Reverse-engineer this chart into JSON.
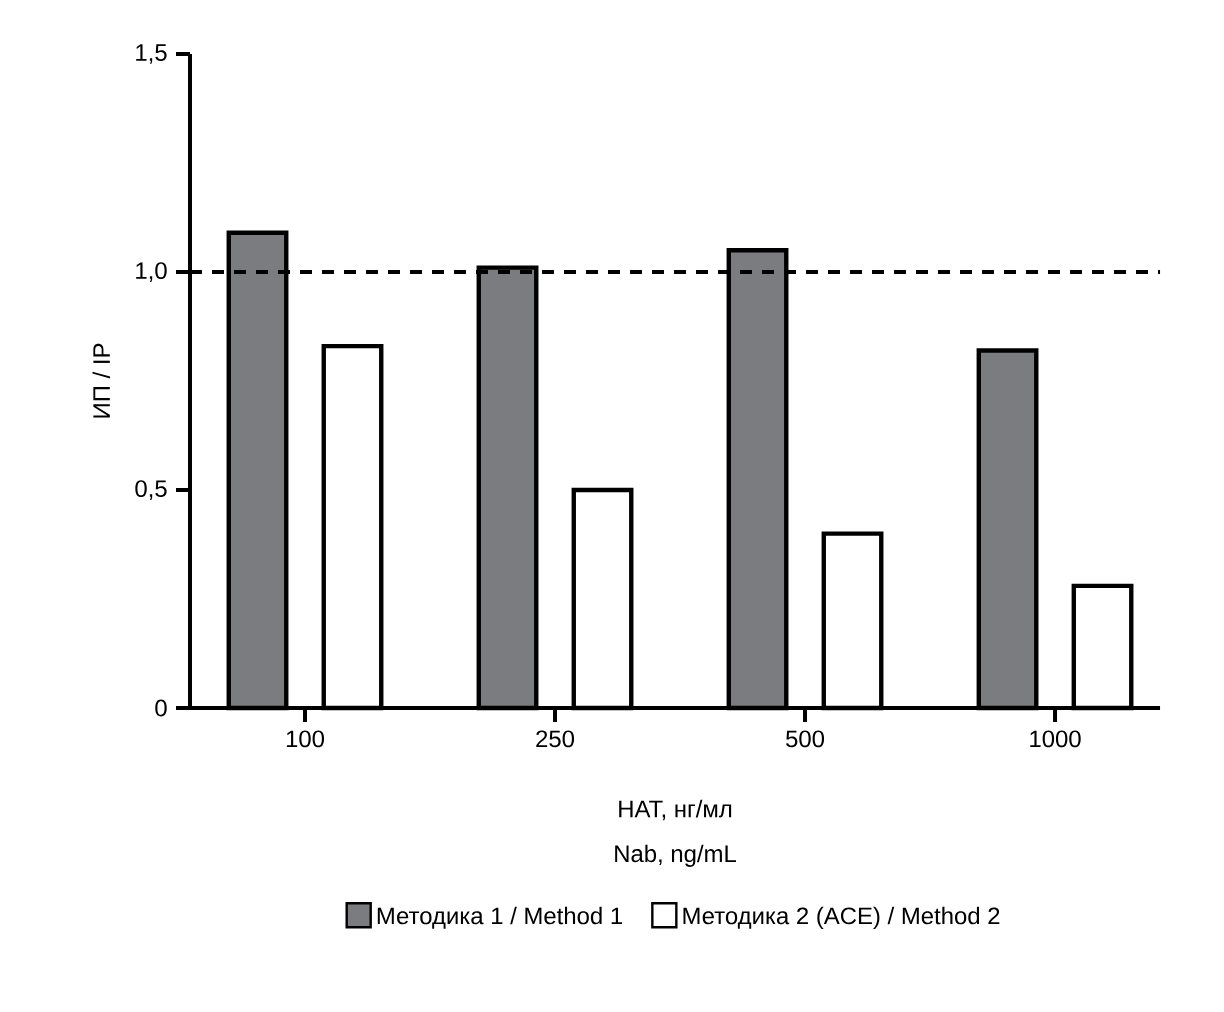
{
  "chart_data": {
    "type": "bar",
    "xlabel": "НАТ, нг/мл",
    "ylabel": "ИП / IP",
    "annotations": [
      "Nab, ng/mL"
    ],
    "categories": [
      "100",
      "250",
      "500",
      "1000"
    ],
    "series": [
      {
        "name": "Методика 1 / Method 1",
        "color": "#7b7c80",
        "values": [
          1.09,
          1.01,
          1.05,
          0.82
        ]
      },
      {
        "name": "Методика 2 (ACE) / Method 2",
        "color": "#ffffff",
        "values": [
          0.83,
          0.5,
          0.4,
          0.28
        ]
      }
    ],
    "ylim": [
      0,
      1.5
    ],
    "yticks": [
      {
        "value": 0,
        "label": "0"
      },
      {
        "value": 0.5,
        "label": "0,5"
      },
      {
        "value": 1.0,
        "label": "1,0"
      },
      {
        "value": 1.5,
        "label": "1,5"
      }
    ],
    "ref_lines": [
      {
        "axis": "y",
        "value": 1.0,
        "line_style": "dashed"
      }
    ],
    "legend": "bottom",
    "grid": false
  }
}
